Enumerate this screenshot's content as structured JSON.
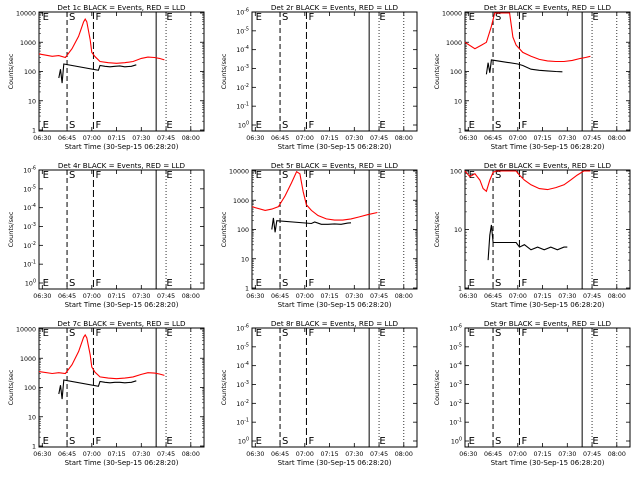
{
  "chart_data": [
    {
      "type": "line",
      "title": "Det 1c BLACK = Events, RED = LLD",
      "xlabel": "Start Time (30-Sep-15 06:28:20)",
      "ylabel": "Counts/sec",
      "yscale": "log",
      "y_ticklabels": [
        "1",
        "10",
        "100",
        "1000",
        "10000"
      ],
      "x_ticklabels": [
        "06:30",
        "06:45",
        "07:00",
        "07:15",
        "07:30",
        "07:45",
        "08:00"
      ],
      "xlim": [
        "06:28",
        "08:08"
      ],
      "markers": [
        {
          "label": "E",
          "x": "06:29"
        },
        {
          "label": "S",
          "x": "06:45"
        },
        {
          "label": "F",
          "x": "07:01"
        },
        {
          "label": "E",
          "x": "07:44"
        }
      ],
      "red": [
        [
          0,
          400
        ],
        [
          8,
          330
        ],
        [
          12,
          350
        ],
        [
          16,
          300
        ],
        [
          20,
          600
        ],
        [
          24,
          1600
        ],
        [
          27,
          5000
        ],
        [
          28,
          6200
        ],
        [
          29,
          5000
        ],
        [
          31,
          1200
        ],
        [
          32,
          450
        ],
        [
          34,
          320
        ],
        [
          37,
          220
        ],
        [
          42,
          200
        ],
        [
          47,
          190
        ],
        [
          52,
          200
        ],
        [
          57,
          220
        ],
        [
          62,
          280
        ],
        [
          66,
          310
        ],
        [
          70,
          300
        ],
        [
          73,
          280
        ],
        [
          76,
          250
        ]
      ],
      "black": [
        [
          12,
          60
        ],
        [
          13,
          120
        ],
        [
          14,
          40
        ],
        [
          15,
          180
        ],
        [
          36,
          110
        ],
        [
          37,
          160
        ],
        [
          40,
          150
        ],
        [
          43,
          145
        ],
        [
          46,
          150
        ],
        [
          49,
          155
        ],
        [
          52,
          145
        ],
        [
          56,
          150
        ],
        [
          59,
          170
        ]
      ]
    },
    {
      "type": "line",
      "title": "Det 2r BLACK = Events, RED = LLD",
      "xlabel": "Start Time (30-Sep-15 06:28:20)",
      "ylabel": "Counts/sec",
      "yscale": "log",
      "y_ticklabels": [
        "10^0",
        "10^-1",
        "10^-2",
        "10^-3",
        "10^-4",
        "10^-5",
        "10^-6"
      ],
      "x_ticklabels": [
        "06:30",
        "06:45",
        "07:00",
        "07:15",
        "07:30",
        "07:45",
        "08:00"
      ],
      "xlim": [
        "06:28",
        "08:08"
      ],
      "markers": [
        {
          "label": "E",
          "x": "06:29"
        },
        {
          "label": "S",
          "x": "06:45"
        },
        {
          "label": "F",
          "x": "07:01"
        },
        {
          "label": "E",
          "x": "07:44"
        }
      ],
      "red": [],
      "black": []
    },
    {
      "type": "line",
      "title": "Det 3r BLACK = Events, RED = LLD",
      "xlabel": "Start Time (30-Sep-15 06:28:20)",
      "ylabel": "Counts/sec",
      "yscale": "log",
      "y_ticklabels": [
        "1",
        "10",
        "100",
        "1000",
        "10000"
      ],
      "x_ticklabels": [
        "06:30",
        "06:45",
        "07:00",
        "07:15",
        "07:30",
        "07:45",
        "08:00"
      ],
      "xlim": [
        "06:28",
        "08:08"
      ],
      "markers": [
        {
          "label": "E",
          "x": "06:29"
        },
        {
          "label": "S",
          "x": "06:45"
        },
        {
          "label": "F",
          "x": "07:01"
        },
        {
          "label": "E",
          "x": "07:44"
        }
      ],
      "red": [
        [
          0,
          1000
        ],
        [
          6,
          600
        ],
        [
          10,
          800
        ],
        [
          13,
          1000
        ],
        [
          16,
          3500
        ],
        [
          18,
          10000
        ],
        [
          24,
          10000
        ],
        [
          27,
          10000
        ],
        [
          29,
          1500
        ],
        [
          31,
          800
        ],
        [
          35,
          450
        ],
        [
          40,
          330
        ],
        [
          45,
          260
        ],
        [
          50,
          230
        ],
        [
          55,
          220
        ],
        [
          60,
          220
        ],
        [
          65,
          240
        ],
        [
          70,
          280
        ],
        [
          73,
          300
        ],
        [
          76,
          330
        ]
      ],
      "black": [
        [
          13,
          80
        ],
        [
          14,
          200
        ],
        [
          15,
          90
        ],
        [
          16,
          250
        ],
        [
          32,
          180
        ],
        [
          35,
          160
        ],
        [
          40,
          120
        ],
        [
          45,
          110
        ],
        [
          50,
          105
        ],
        [
          55,
          100
        ],
        [
          59,
          98
        ]
      ]
    },
    {
      "type": "line",
      "title": "Det 4r BLACK = Events, RED = LLD",
      "xlabel": "Start Time (30-Sep-15 06:28:20)",
      "ylabel": "Counts/sec",
      "yscale": "log",
      "y_ticklabels": [
        "10^0",
        "10^-1",
        "10^-2",
        "10^-3",
        "10^-4",
        "10^-5",
        "10^-6"
      ],
      "x_ticklabels": [
        "06:30",
        "06:45",
        "07:00",
        "07:15",
        "07:30",
        "07:45",
        "08:00"
      ],
      "xlim": [
        "06:28",
        "08:08"
      ],
      "markers": [
        {
          "label": "E",
          "x": "06:29"
        },
        {
          "label": "S",
          "x": "06:45"
        },
        {
          "label": "F",
          "x": "07:01"
        },
        {
          "label": "E",
          "x": "07:44"
        }
      ],
      "red": [],
      "black": []
    },
    {
      "type": "line",
      "title": "Det 5r BLACK = Events, RED = LLD",
      "xlabel": "Start Time (30-Sep-15 06:28:20)",
      "ylabel": "Counts/sec",
      "yscale": "log",
      "y_ticklabels": [
        "1",
        "10",
        "100",
        "1000",
        "10000"
      ],
      "x_ticklabels": [
        "06:30",
        "06:45",
        "07:00",
        "07:15",
        "07:30",
        "07:45",
        "08:00"
      ],
      "xlim": [
        "06:28",
        "08:08"
      ],
      "markers": [
        {
          "label": "E",
          "x": "06:29"
        },
        {
          "label": "S",
          "x": "06:45"
        },
        {
          "label": "F",
          "x": "07:01"
        },
        {
          "label": "E",
          "x": "07:44"
        }
      ],
      "red": [
        [
          0,
          600
        ],
        [
          8,
          450
        ],
        [
          12,
          500
        ],
        [
          16,
          600
        ],
        [
          20,
          1400
        ],
        [
          24,
          4000
        ],
        [
          27,
          9500
        ],
        [
          29,
          8000
        ],
        [
          31,
          2000
        ],
        [
          33,
          700
        ],
        [
          36,
          450
        ],
        [
          40,
          300
        ],
        [
          45,
          230
        ],
        [
          50,
          210
        ],
        [
          55,
          210
        ],
        [
          60,
          230
        ],
        [
          65,
          270
        ],
        [
          70,
          320
        ],
        [
          76,
          380
        ]
      ],
      "black": [
        [
          12,
          100
        ],
        [
          13,
          250
        ],
        [
          14,
          80
        ],
        [
          15,
          200
        ],
        [
          36,
          160
        ],
        [
          38,
          180
        ],
        [
          42,
          150
        ],
        [
          46,
          150
        ],
        [
          50,
          155
        ],
        [
          54,
          150
        ],
        [
          58,
          165
        ],
        [
          60,
          170
        ]
      ]
    },
    {
      "type": "line",
      "title": "Det 6r BLACK = Events, RED = LLD",
      "xlabel": "Start Time (30-Sep-15 06:28:20)",
      "ylabel": "Counts/sec",
      "yscale": "log",
      "y_ticklabels": [
        "1",
        "10",
        "100"
      ],
      "x_ticklabels": [
        "06:30",
        "06:45",
        "07:00",
        "07:15",
        "07:30",
        "07:45",
        "08:00"
      ],
      "xlim": [
        "06:28",
        "08:08"
      ],
      "markers": [
        {
          "label": "E",
          "x": "06:29"
        },
        {
          "label": "S",
          "x": "06:45"
        },
        {
          "label": "F",
          "x": "07:01"
        },
        {
          "label": "E",
          "x": "07:44"
        }
      ],
      "red": [
        [
          0,
          100
        ],
        [
          3,
          80
        ],
        [
          6,
          90
        ],
        [
          9,
          70
        ],
        [
          11,
          50
        ],
        [
          13,
          45
        ],
        [
          15,
          70
        ],
        [
          17,
          95
        ],
        [
          19,
          100
        ],
        [
          31,
          100
        ],
        [
          33,
          85
        ],
        [
          36,
          70
        ],
        [
          40,
          58
        ],
        [
          45,
          50
        ],
        [
          50,
          48
        ],
        [
          55,
          52
        ],
        [
          60,
          58
        ],
        [
          64,
          70
        ],
        [
          68,
          85
        ],
        [
          72,
          100
        ],
        [
          76,
          100
        ]
      ],
      "black": [
        [
          14,
          3
        ],
        [
          15,
          8
        ],
        [
          16,
          12
        ],
        [
          17,
          6
        ],
        [
          31,
          6
        ],
        [
          33,
          5
        ],
        [
          36,
          5.5
        ],
        [
          40,
          4.5
        ],
        [
          44,
          5
        ],
        [
          48,
          4.5
        ],
        [
          52,
          5
        ],
        [
          56,
          4.5
        ],
        [
          60,
          5
        ],
        [
          62,
          5
        ]
      ]
    },
    {
      "type": "line",
      "title": "Det 7c BLACK = Events, RED = LLD",
      "xlabel": "Start Time (30-Sep-15 06:28:20)",
      "ylabel": "Counts/sec",
      "yscale": "log",
      "y_ticklabels": [
        "1",
        "10",
        "100",
        "1000",
        "10000"
      ],
      "x_ticklabels": [
        "06:30",
        "06:45",
        "07:00",
        "07:15",
        "07:30",
        "07:45",
        "08:00"
      ],
      "xlim": [
        "06:28",
        "08:08"
      ],
      "markers": [
        {
          "label": "E",
          "x": "06:29"
        },
        {
          "label": "S",
          "x": "06:45"
        },
        {
          "label": "F",
          "x": "07:01"
        },
        {
          "label": "E",
          "x": "07:44"
        }
      ],
      "red": [
        [
          0,
          350
        ],
        [
          8,
          300
        ],
        [
          12,
          320
        ],
        [
          16,
          300
        ],
        [
          20,
          600
        ],
        [
          24,
          1700
        ],
        [
          27,
          5200
        ],
        [
          28,
          6300
        ],
        [
          29,
          5000
        ],
        [
          31,
          1300
        ],
        [
          32,
          500
        ],
        [
          34,
          330
        ],
        [
          37,
          230
        ],
        [
          42,
          210
        ],
        [
          47,
          200
        ],
        [
          52,
          210
        ],
        [
          57,
          230
        ],
        [
          62,
          280
        ],
        [
          66,
          320
        ],
        [
          70,
          310
        ],
        [
          73,
          290
        ],
        [
          76,
          260
        ]
      ],
      "black": [
        [
          12,
          60
        ],
        [
          13,
          120
        ],
        [
          14,
          40
        ],
        [
          15,
          180
        ],
        [
          36,
          110
        ],
        [
          37,
          160
        ],
        [
          40,
          150
        ],
        [
          43,
          145
        ],
        [
          46,
          150
        ],
        [
          49,
          150
        ],
        [
          52,
          145
        ],
        [
          56,
          150
        ],
        [
          59,
          170
        ]
      ]
    },
    {
      "type": "line",
      "title": "Det 8r BLACK = Events, RED = LLD",
      "xlabel": "Start Time (30-Sep-15 06:28:20)",
      "ylabel": "Counts/sec",
      "yscale": "log",
      "y_ticklabels": [
        "10^0",
        "10^-1",
        "10^-2",
        "10^-3",
        "10^-4",
        "10^-5",
        "10^-6"
      ],
      "x_ticklabels": [
        "06:30",
        "06:45",
        "07:00",
        "07:15",
        "07:30",
        "07:45",
        "08:00"
      ],
      "xlim": [
        "06:28",
        "08:08"
      ],
      "markers": [
        {
          "label": "E",
          "x": "06:29"
        },
        {
          "label": "S",
          "x": "06:45"
        },
        {
          "label": "F",
          "x": "07:01"
        },
        {
          "label": "E",
          "x": "07:44"
        }
      ],
      "red": [],
      "black": []
    },
    {
      "type": "line",
      "title": "Det 9r BLACK = Events, RED = LLD",
      "xlabel": "Start Time (30-Sep-15 06:28:20)",
      "ylabel": "Counts/sec",
      "yscale": "log",
      "y_ticklabels": [
        "10^0",
        "10^-1",
        "10^-2",
        "10^-3",
        "10^-4",
        "10^-5",
        "10^-6"
      ],
      "x_ticklabels": [
        "06:30",
        "06:45",
        "07:00",
        "07:15",
        "07:30",
        "07:45",
        "08:00"
      ],
      "xlim": [
        "06:28",
        "08:08"
      ],
      "markers": [
        {
          "label": "E",
          "x": "06:29"
        },
        {
          "label": "S",
          "x": "06:45"
        },
        {
          "label": "F",
          "x": "07:01"
        },
        {
          "label": "E",
          "x": "07:44"
        }
      ],
      "red": [],
      "black": []
    }
  ],
  "colors": {
    "events": "#000000",
    "lld": "#ff0000",
    "axes": "#000000",
    "background": "#ffffff"
  }
}
